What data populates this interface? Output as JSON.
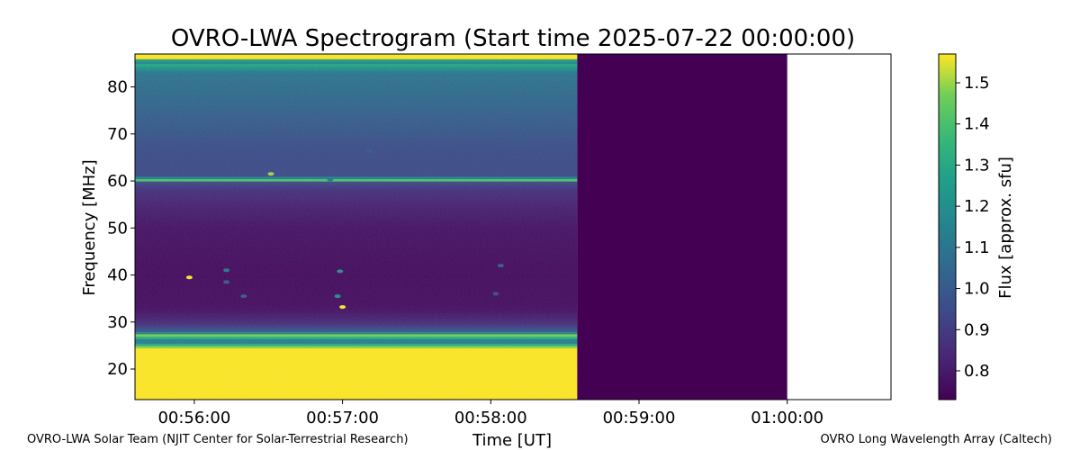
{
  "chart_data": {
    "type": "heatmap",
    "title": "OVRO-LWA Spectrogram (Start time 2025-07-22 00:00:00)",
    "xlabel": "Time [UT]",
    "ylabel": "Frequency [MHz]",
    "xlim": [
      "00:55:36",
      "01:00:42"
    ],
    "ylim": [
      13.5,
      87
    ],
    "xticks": [
      "00:56:00",
      "00:57:00",
      "00:58:00",
      "00:59:00",
      "01:00:00"
    ],
    "yticks": [
      20,
      30,
      40,
      50,
      60,
      70,
      80
    ],
    "data_end_time": "00:58:35",
    "fill_end_time": "01:00:00",
    "colormap": "viridis",
    "colorbar": {
      "label": "Flux [approx. sfu]",
      "range": [
        0.73,
        1.57
      ],
      "ticks": [
        "0.8",
        "0.9",
        "1.0",
        "1.1",
        "1.2",
        "1.3",
        "1.4",
        "1.5"
      ]
    },
    "frequency_profile": [
      {
        "freq": 13.5,
        "flux": 1.57
      },
      {
        "freq": 24.5,
        "flux": 1.57
      },
      {
        "freq": 26,
        "flux": 1.05
      },
      {
        "freq": 27.2,
        "flux": 1.5
      },
      {
        "freq": 28,
        "flux": 1.0
      },
      {
        "freq": 30,
        "flux": 0.84
      },
      {
        "freq": 33,
        "flux": 0.77
      },
      {
        "freq": 40,
        "flux": 0.76
      },
      {
        "freq": 50,
        "flux": 0.78
      },
      {
        "freq": 55,
        "flux": 0.82
      },
      {
        "freq": 58,
        "flux": 0.86
      },
      {
        "freq": 60,
        "flux": 0.95
      },
      {
        "freq": 60.3,
        "flux": 1.5
      },
      {
        "freq": 61,
        "flux": 0.95
      },
      {
        "freq": 66,
        "flux": 0.95
      },
      {
        "freq": 72,
        "flux": 1.0
      },
      {
        "freq": 78,
        "flux": 1.05
      },
      {
        "freq": 83,
        "flux": 1.1
      },
      {
        "freq": 84.8,
        "flux": 1.3
      },
      {
        "freq": 85.5,
        "flux": 1.1
      },
      {
        "freq": 86.2,
        "flux": 1.57
      },
      {
        "freq": 87,
        "flux": 1.57
      }
    ],
    "bursts": [
      {
        "time": "00:55:58",
        "freq": 39.5,
        "flux": 1.57
      },
      {
        "time": "00:56:13",
        "freq": 41,
        "flux": 1.1
      },
      {
        "time": "00:56:13",
        "freq": 38.5,
        "flux": 1.0
      },
      {
        "time": "00:56:20",
        "freq": 35.5,
        "flux": 1.0
      },
      {
        "time": "00:56:59",
        "freq": 40.8,
        "flux": 1.2
      },
      {
        "time": "00:56:58",
        "freq": 35.5,
        "flux": 1.2
      },
      {
        "time": "00:57:00",
        "freq": 33.2,
        "flux": 1.57
      },
      {
        "time": "00:56:31",
        "freq": 61.5,
        "flux": 1.5
      },
      {
        "time": "00:56:55",
        "freq": 60.3,
        "flux": 1.1
      },
      {
        "time": "00:57:11",
        "freq": 66.5,
        "flux": 1.0
      },
      {
        "time": "00:58:04",
        "freq": 42,
        "flux": 1.0
      },
      {
        "time": "00:58:02",
        "freq": 36,
        "flux": 0.95
      }
    ]
  },
  "footer": {
    "left": "OVRO-LWA Solar Team (NJIT Center for Solar-Terrestrial Research)",
    "right": "OVRO Long Wavelength Array (Caltech)"
  }
}
